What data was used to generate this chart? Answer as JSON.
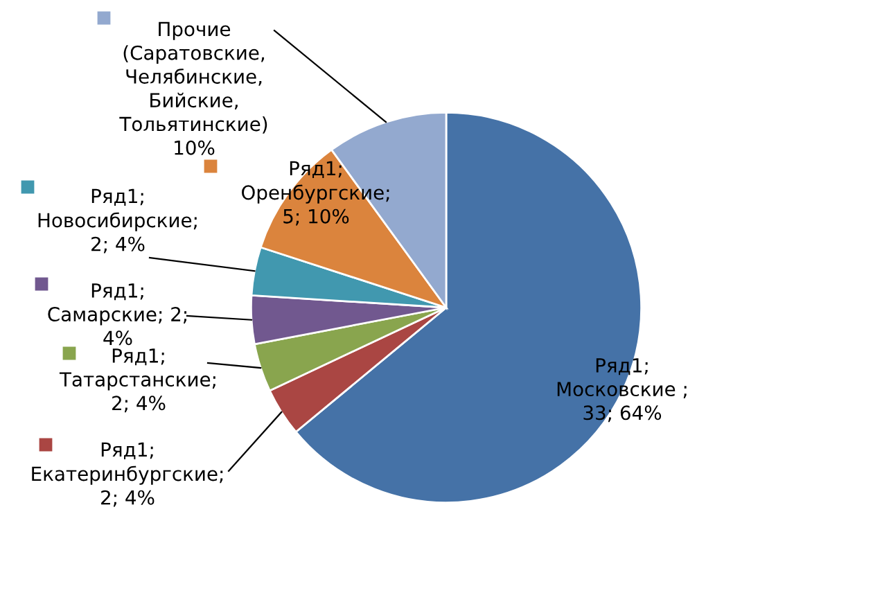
{
  "chart_data": {
    "type": "pie",
    "categories": [
      "Московские",
      "Екатеринбургские",
      "Татарстанские",
      "Самарские",
      "Новосибирские",
      "Оренбургские",
      "Прочие (Саратовские, Челябинские, Бийские, Тольятинские)"
    ],
    "series": [
      {
        "name": "Ряд1;",
        "values": [
          64,
          4,
          4,
          4,
          4,
          10,
          10
        ]
      }
    ],
    "colors": [
      "#4572a7",
      "#aa4643",
      "#89a54e",
      "#71588f",
      "#4198af",
      "#db843d",
      "#93a9cf"
    ],
    "value_labels": [
      "; 33; 64%",
      "; 2; 4%",
      "; 2; 4%",
      "; 2; 4%",
      "; 2; 4%",
      "; 5; 10%",
      "10%"
    ]
  }
}
